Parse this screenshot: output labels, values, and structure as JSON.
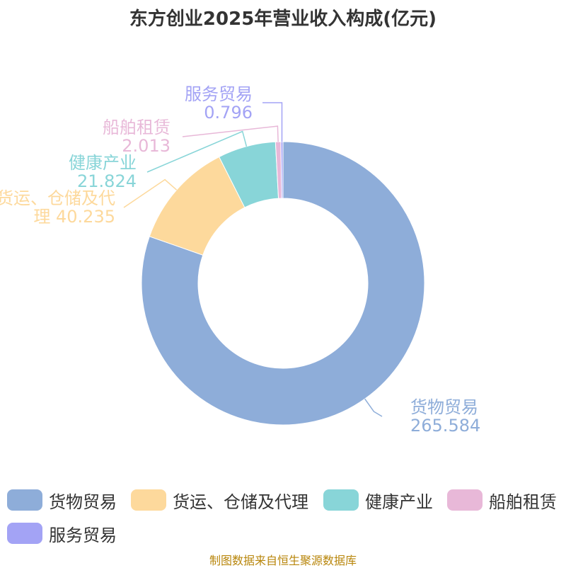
{
  "title": "东方创业2025年营业收入构成(亿元)",
  "source": "制图数据来自恒生聚源数据库",
  "chart_data": {
    "type": "pie",
    "donut": true,
    "title": "东方创业2025年营业收入构成(亿元)",
    "legend_position": "bottom",
    "slices": [
      {
        "name": "货物贸易",
        "value": 265.584,
        "color": "#8eadd9",
        "label_lines": [
          "货物贸易",
          "265.584"
        ]
      },
      {
        "name": "货运、仓储及代理",
        "value": 40.235,
        "color": "#fdd99c",
        "label_lines": [
          "货运、仓储及代",
          "理 40.235"
        ]
      },
      {
        "name": "健康产业",
        "value": 21.824,
        "color": "#88d5d8",
        "label_lines": [
          "健康产业",
          "21.824"
        ]
      },
      {
        "name": "船舶租赁",
        "value": 2.013,
        "color": "#e8b8d8",
        "label_lines": [
          "船舶租赁",
          "2.013"
        ]
      },
      {
        "name": "服务贸易",
        "value": 0.796,
        "color": "#a3a3f5",
        "label_lines": [
          "服务贸易",
          "0.796"
        ]
      }
    ]
  }
}
